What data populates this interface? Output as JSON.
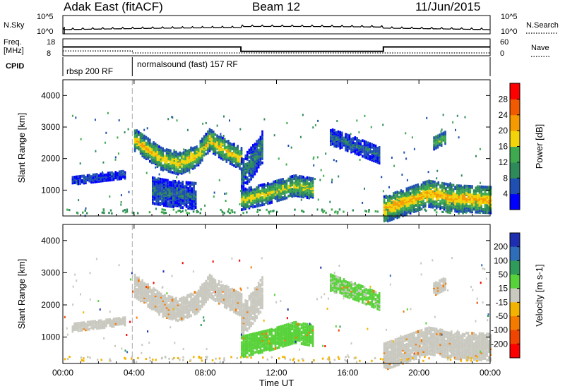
{
  "header": {
    "station": "Adak East (fitACF)",
    "beam": "Beam 12",
    "date": "11/Jun/2015"
  },
  "strip": {
    "nsky_label": "N.Sky",
    "nsky_ticks": [
      "10^5",
      "10^0"
    ],
    "nsearch_label": "N.Search",
    "nsearch_ticks": [
      "10^5",
      "10^0"
    ],
    "freq_label_1": "Freq.",
    "freq_label_2": "[MHz]",
    "freq_ticks": [
      "18",
      "8"
    ],
    "nave_label": "Nave",
    "nave_ticks": [
      "60",
      "0"
    ],
    "cpid_label": "CPID",
    "cpid_segments": [
      {
        "text": "rbsp 200 RF",
        "start": 0,
        "end": 3.9
      },
      {
        "text": "normalsound (fast) 157 RF",
        "start": 3.9,
        "end": 24
      }
    ],
    "freq_steps": [
      {
        "start": 0,
        "end": 3.9,
        "value": 13.2
      },
      {
        "start": 3.9,
        "end": 10,
        "value": 13.2
      },
      {
        "start": 10,
        "end": 18,
        "value": 10.6
      },
      {
        "start": 18,
        "end": 24,
        "value": 13.2
      }
    ],
    "nave_steps": [
      {
        "start": 0,
        "end": 3.9,
        "value": 17
      },
      {
        "start": 3.9,
        "end": 24,
        "value": 10
      }
    ]
  },
  "chart_data": [
    {
      "type": "heatmap",
      "name_short": "power",
      "ylabel": "Slant Range [km]",
      "xlabel": "",
      "ylim": [
        180,
        4500
      ],
      "yticks": [
        1000,
        2000,
        3000,
        4000
      ],
      "xlim": [
        0,
        24
      ],
      "cbar_label": "Power [dB]",
      "cbar_ticks": [
        "4",
        "8",
        "12",
        "16",
        "20",
        "24",
        "28"
      ],
      "cbar_tick_values": [
        4,
        8,
        12,
        16,
        20,
        24,
        28
      ],
      "cbar_range": [
        0,
        32
      ],
      "colors": [
        "#0000ff",
        "#1f4fb0",
        "#2f8a5a",
        "#3fa950",
        "#f2d40a",
        "#f59a00",
        "#f05a00",
        "#ff0000"
      ],
      "echo_regions": [
        {
          "t0": 4.0,
          "t1": 10.0,
          "center": [
            [
              4.0,
              2600
            ],
            [
              5.5,
              2000
            ],
            [
              6.5,
              1850
            ],
            [
              7.5,
              2100
            ],
            [
              8.2,
              2600
            ],
            [
              9.0,
              2300
            ],
            [
              10.0,
              2000
            ]
          ],
          "width": 350,
          "power": 20
        },
        {
          "t0": 10.0,
          "t1": 11.2,
          "center": [
            [
              10.0,
              1500
            ],
            [
              10.6,
              1900
            ],
            [
              11.2,
              2400
            ]
          ],
          "width": 500,
          "power": 10
        },
        {
          "t0": 10.0,
          "t1": 14.0,
          "center": [
            [
              10.0,
              700
            ],
            [
              11.5,
              900
            ],
            [
              13.0,
              1150
            ],
            [
              14.0,
              1050
            ]
          ],
          "width": 320,
          "power": 18
        },
        {
          "t0": 5.0,
          "t1": 7.5,
          "center": [
            [
              5.0,
              1000
            ],
            [
              6.0,
              900
            ],
            [
              7.5,
              820
            ]
          ],
          "width": 420,
          "power": 8
        },
        {
          "t0": 15.0,
          "t1": 17.8,
          "center": [
            [
              15.0,
              2700
            ],
            [
              16.5,
              2400
            ],
            [
              17.8,
              2100
            ]
          ],
          "width": 260,
          "power": 8
        },
        {
          "t0": 18.0,
          "t1": 24.0,
          "center": [
            [
              18.0,
              400
            ],
            [
              19.0,
              600
            ],
            [
              20.5,
              900
            ],
            [
              22.0,
              750
            ],
            [
              24.0,
              700
            ]
          ],
          "width": 420,
          "power": 22
        },
        {
          "t0": 0.5,
          "t1": 3.5,
          "center": [
            [
              0.5,
              1300
            ],
            [
              2.0,
              1400
            ],
            [
              3.5,
              1500
            ]
          ],
          "width": 120,
          "power": 6
        },
        {
          "t0": 20.8,
          "t1": 21.5,
          "center": [
            [
              20.8,
              2500
            ],
            [
              21.5,
              2700
            ]
          ],
          "width": 200,
          "power": 16
        }
      ]
    },
    {
      "type": "heatmap",
      "name_short": "velocity",
      "ylabel": "Slant Range [km]",
      "xlabel": "Time UT",
      "ylim": [
        180,
        4500
      ],
      "yticks": [
        1000,
        2000,
        3000,
        4000
      ],
      "xlim": [
        0,
        24
      ],
      "xticks": [
        "00:00",
        "04:00",
        "08:00",
        "12:00",
        "16:00",
        "20:00",
        "00:00"
      ],
      "xtick_values": [
        0,
        4,
        8,
        12,
        16,
        20,
        24
      ],
      "cbar_label": "Velocity [m s-1]",
      "cbar_ticks": [
        "200",
        "100",
        "50",
        "15",
        "-15",
        "-50",
        "-100",
        "-200"
      ],
      "colors": [
        "#1d2fb0",
        "#2f6db8",
        "#2f9a5a",
        "#58d23a",
        "#c9c9c0",
        "#f2b400",
        "#f57a00",
        "#f04500",
        "#ff0000"
      ],
      "echo_regions": [
        {
          "t0": 4.0,
          "t1": 10.0,
          "center": [
            [
              4.0,
              2600
            ],
            [
              5.5,
              2000
            ],
            [
              6.5,
              1850
            ],
            [
              7.5,
              2100
            ],
            [
              8.2,
              2600
            ],
            [
              9.0,
              2300
            ],
            [
              10.0,
              2000
            ]
          ],
          "width": 350,
          "velocity": 0
        },
        {
          "t0": 10.0,
          "t1": 11.2,
          "center": [
            [
              10.0,
              1500
            ],
            [
              10.6,
              1900
            ],
            [
              11.2,
              2400
            ]
          ],
          "width": 500,
          "velocity": 0
        },
        {
          "t0": 10.0,
          "t1": 14.0,
          "center": [
            [
              10.0,
              700
            ],
            [
              11.5,
              900
            ],
            [
              13.0,
              1150
            ],
            [
              14.0,
              1050
            ]
          ],
          "width": 320,
          "velocity": 40
        },
        {
          "t0": 15.0,
          "t1": 17.8,
          "center": [
            [
              15.0,
              2700
            ],
            [
              16.5,
              2400
            ],
            [
              17.8,
              2100
            ]
          ],
          "width": 260,
          "velocity": 30
        },
        {
          "t0": 18.0,
          "t1": 24.0,
          "center": [
            [
              18.0,
              400
            ],
            [
              19.0,
              600
            ],
            [
              20.5,
              900
            ],
            [
              22.0,
              750
            ],
            [
              24.0,
              700
            ]
          ],
          "width": 420,
          "velocity": 0
        },
        {
          "t0": 0.5,
          "t1": 3.5,
          "center": [
            [
              0.5,
              1300
            ],
            [
              2.0,
              1400
            ],
            [
              3.5,
              1500
            ]
          ],
          "width": 120,
          "velocity": 0
        },
        {
          "t0": 20.8,
          "t1": 21.5,
          "center": [
            [
              20.8,
              2500
            ],
            [
              21.5,
              2700
            ]
          ],
          "width": 200,
          "velocity": 0
        }
      ]
    }
  ]
}
